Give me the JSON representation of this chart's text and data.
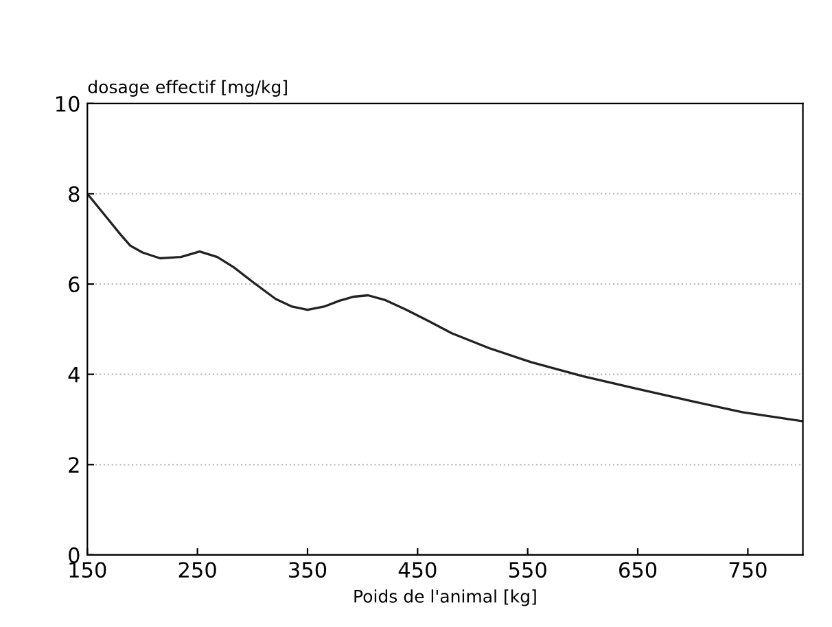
{
  "chart_data": {
    "type": "line",
    "ylabel": "dosage effectif [mg/kg]",
    "xlabel": "Poids de l'animal [kg]",
    "x": [
      150,
      165,
      180,
      189,
      200,
      216,
      235,
      252,
      268,
      283,
      300,
      321,
      336,
      350,
      365,
      379,
      392,
      405,
      420,
      439,
      460,
      481,
      515,
      553,
      600,
      649,
      700,
      745,
      800
    ],
    "series": [
      {
        "color": "#222222",
        "values": [
          8.0,
          7.55,
          7.1,
          6.85,
          6.7,
          6.57,
          6.6,
          6.72,
          6.6,
          6.37,
          6.05,
          5.67,
          5.5,
          5.43,
          5.5,
          5.63,
          5.72,
          5.75,
          5.65,
          5.44,
          5.18,
          4.91,
          4.58,
          4.27,
          3.96,
          3.68,
          3.4,
          3.16,
          2.96
        ]
      }
    ],
    "xlim": [
      150,
      800
    ],
    "ylim": [
      0,
      10
    ],
    "xticks": [
      150,
      250,
      350,
      450,
      550,
      650,
      750
    ],
    "yticks": [
      0,
      2,
      4,
      6,
      8,
      10
    ],
    "grid": "y",
    "line_style": "solid",
    "marker": "none",
    "legend": false
  }
}
